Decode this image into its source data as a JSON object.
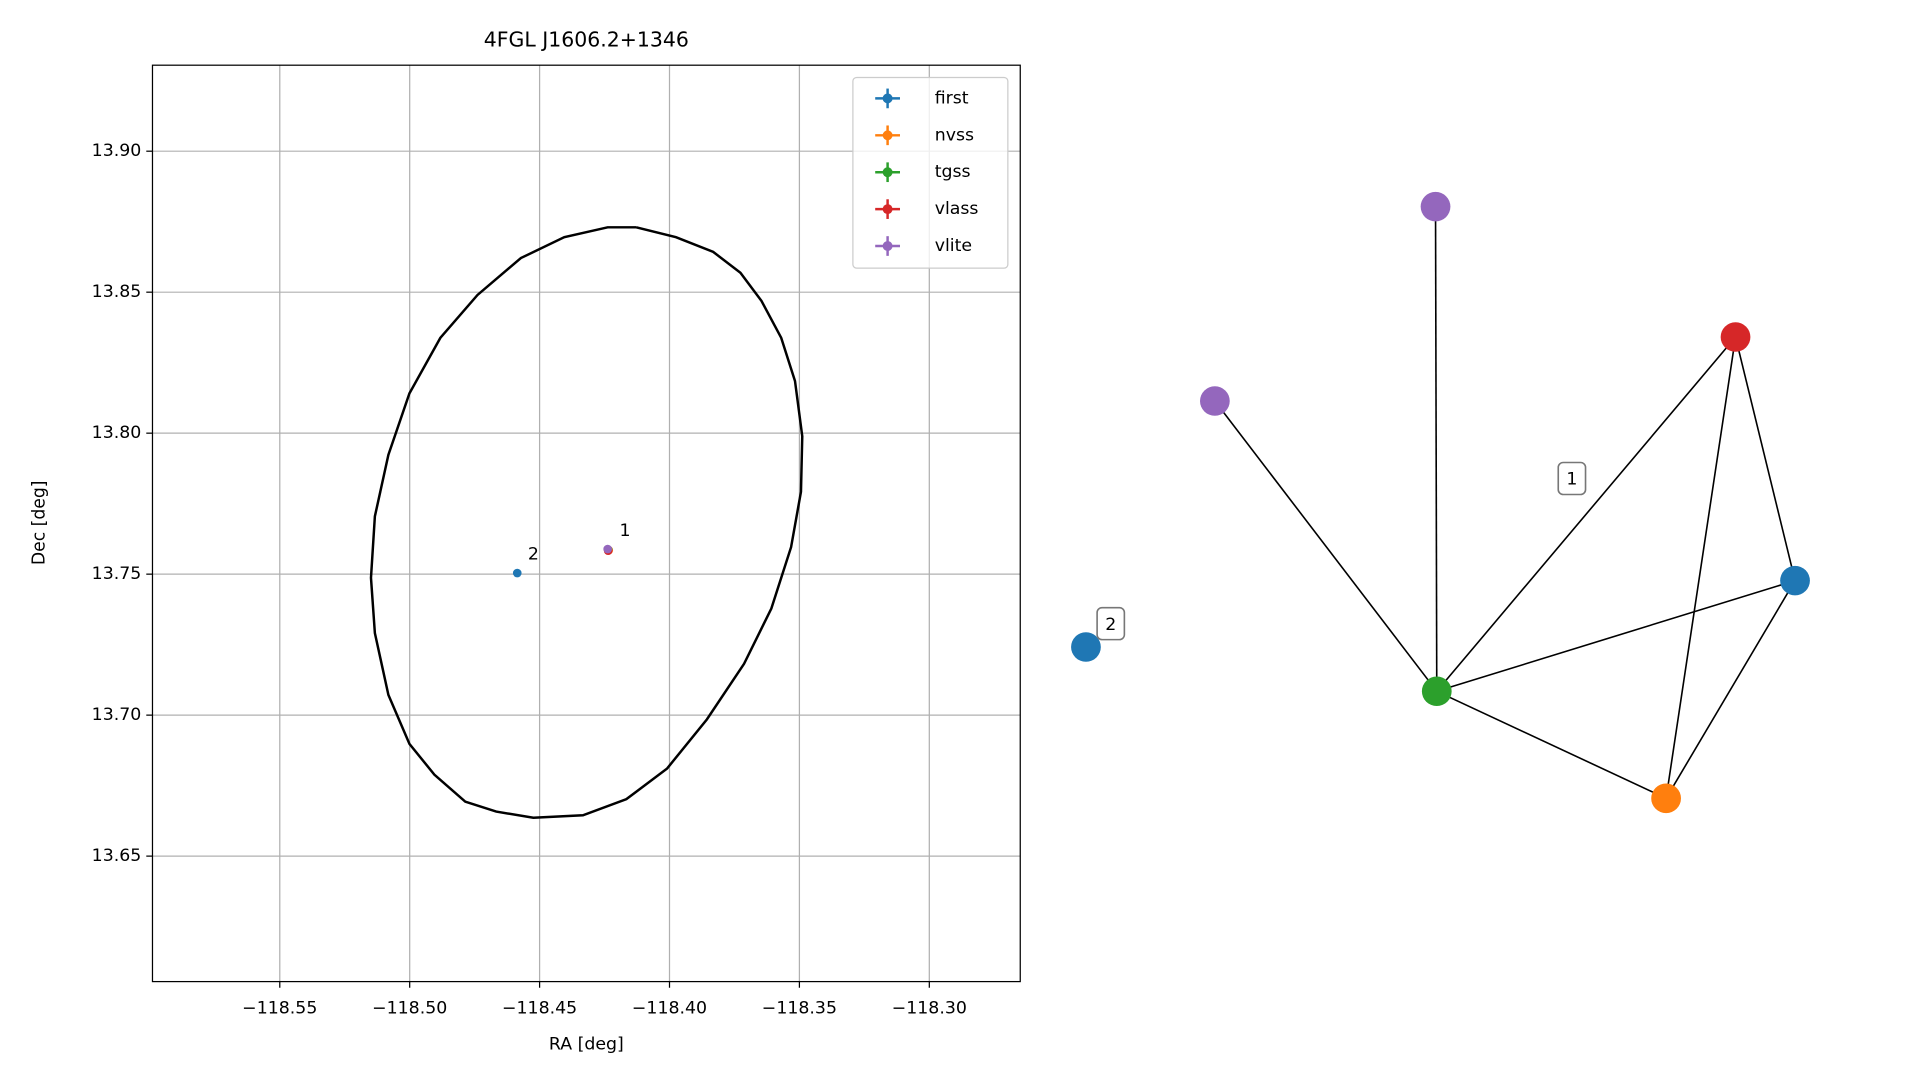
{
  "chart_data": {
    "type": "scatter",
    "title": "4FGL J1606.2+1346",
    "x_label": "RA [deg]",
    "y_label": "Dec [deg]",
    "xlim": [
      -118.599,
      -118.265
    ],
    "ylim": [
      13.6055,
      13.9305
    ],
    "xticks": [
      {
        "value": -118.55,
        "label": "−118.55"
      },
      {
        "value": -118.5,
        "label": "−118.50"
      },
      {
        "value": -118.45,
        "label": "−118.45"
      },
      {
        "value": -118.4,
        "label": "−118.40"
      },
      {
        "value": -118.35,
        "label": "−118.35"
      },
      {
        "value": -118.3,
        "label": "−118.30"
      }
    ],
    "yticks": [
      13.65,
      {
        "value": 13.7,
        "label": "13.70"
      },
      13.75,
      {
        "value": 13.8,
        "label": "13.80"
      },
      13.85,
      {
        "value": 13.9,
        "label": "13.90"
      }
    ],
    "grid": true,
    "legend": "upper right",
    "series": [
      {
        "name": "first",
        "color": "#1f77b4",
        "x": [
          -118.4586
        ],
        "y": [
          13.7504
        ]
      },
      {
        "name": "nvss",
        "color": "#ff7f0e",
        "x": [
          -118.4234
        ],
        "y": [
          13.7585
        ]
      },
      {
        "name": "tgss",
        "color": "#2ca02c",
        "x": [
          -118.4236
        ],
        "y": [
          13.7586
        ]
      },
      {
        "name": "vlass",
        "color": "#d62728",
        "x": [
          -118.4236
        ],
        "y": [
          13.7583
        ]
      },
      {
        "name": "vlite",
        "color": "#9467bd",
        "x": [
          -118.4238
        ],
        "y": [
          13.7589
        ]
      }
    ],
    "ellipse": {
      "color": "#000000",
      "x": [
        -118.4128,
        -118.3975,
        -118.3832,
        -118.3727,
        -118.3646,
        -118.357,
        -118.3517,
        -118.3489,
        -118.3494,
        -118.3532,
        -118.3608,
        -118.3713,
        -118.3856,
        -118.4009,
        -118.4166,
        -118.4333,
        -118.4524,
        -118.4667,
        -118.4786,
        -118.4905,
        -118.5001,
        -118.5082,
        -118.5134,
        -118.5149,
        -118.5134,
        -118.5082,
        -118.5001,
        -118.4882,
        -118.4739,
        -118.4572,
        -118.4405,
        -118.4238,
        -118.4128
      ],
      "y": [
        13.873,
        13.8695,
        13.8643,
        13.8569,
        13.8469,
        13.8338,
        13.8185,
        13.7989,
        13.7792,
        13.7596,
        13.7378,
        13.7182,
        13.6985,
        13.6811,
        13.6702,
        13.6645,
        13.6636,
        13.6658,
        13.6693,
        13.6789,
        13.6898,
        13.7072,
        13.7291,
        13.7487,
        13.7705,
        13.7923,
        13.8141,
        13.8338,
        13.849,
        13.8621,
        13.8695,
        13.873,
        13.873
      ]
    },
    "annotations": [
      {
        "text": "1",
        "x": -118.4171,
        "y": 13.7653
      },
      {
        "text": "2",
        "x": -118.4524,
        "y": 13.757
      }
    ]
  },
  "graph": {
    "nodes": [
      {
        "color": "#9467bd"
      },
      {
        "color": "#9467bd"
      },
      {
        "color": "#d62728"
      },
      {
        "color": "#1f77b4"
      },
      {
        "color": "#2ca02c"
      },
      {
        "color": "#ff7f0e"
      },
      {
        "color": "#1f77b4"
      }
    ],
    "edges": [
      [
        0,
        4
      ],
      [
        1,
        4
      ],
      [
        2,
        4
      ],
      [
        2,
        5
      ],
      [
        2,
        3
      ],
      [
        3,
        4
      ],
      [
        3,
        5
      ],
      [
        4,
        5
      ]
    ],
    "labels": [
      "1",
      "2"
    ]
  }
}
